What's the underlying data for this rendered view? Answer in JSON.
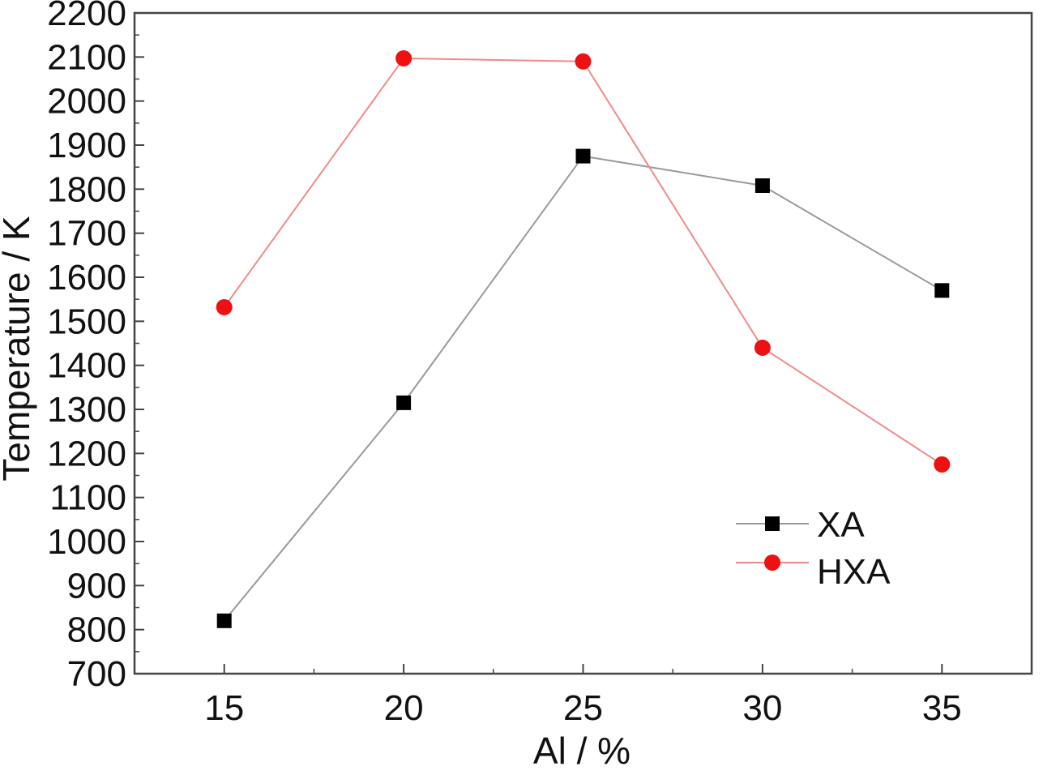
{
  "chart_data": {
    "type": "line",
    "title": "",
    "xlabel": "Al / %",
    "ylabel": "Temperature / K",
    "x": [
      15,
      20,
      25,
      30,
      35
    ],
    "xticks": [
      "15",
      "20",
      "25",
      "30",
      "35"
    ],
    "xlim": [
      12.5,
      37.5
    ],
    "ylim": [
      700,
      2200
    ],
    "yticks": [
      "700",
      "800",
      "900",
      "1000",
      "1100",
      "1200",
      "1300",
      "1400",
      "1500",
      "1600",
      "1700",
      "1800",
      "1900",
      "2000",
      "2100",
      "2200"
    ],
    "grid": false,
    "legend_position": "lower-right",
    "series": [
      {
        "name": "XA",
        "values": [
          820,
          1315,
          1875,
          1808,
          1570
        ],
        "marker": "square",
        "marker_color": "#000000",
        "line_color": "#9a9a9a"
      },
      {
        "name": "HXA",
        "values": [
          1532,
          2097,
          2090,
          1440,
          1175
        ],
        "marker": "circle",
        "marker_color": "#ee1111",
        "line_color": "#f08a8a"
      }
    ]
  }
}
